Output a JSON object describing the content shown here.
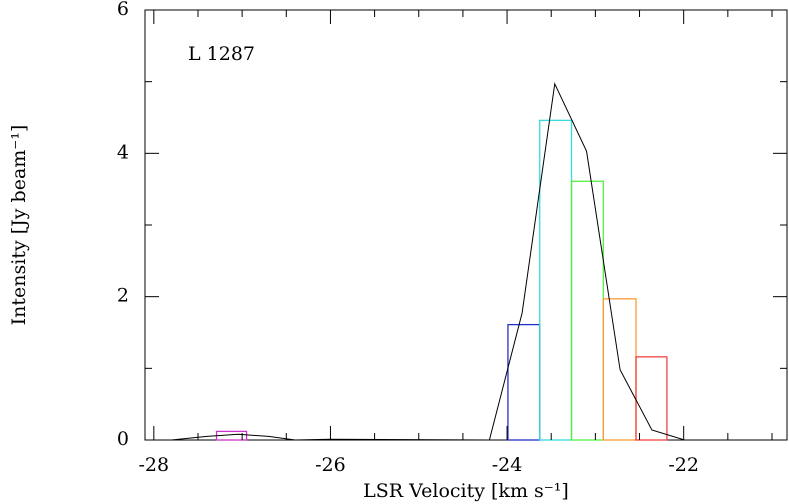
{
  "chart_data": {
    "type": "histogram-line",
    "annotation": "L 1287",
    "x_label": "LSR Velocity [km s⁻¹]",
    "y_label": "Intensity [Jy beam⁻¹]",
    "xlim": [
      -28.1,
      -20.83
    ],
    "ylim": [
      0,
      6
    ],
    "xticks": [
      -28,
      -26,
      -24,
      -22
    ],
    "yticks": [
      0,
      2,
      4,
      6
    ],
    "xminorticks": [
      -27.5,
      -27,
      -26.5,
      -25.5,
      -25,
      -24.5,
      -23.5,
      -23,
      -22.5,
      -21.5,
      -21
    ],
    "yminorticks": [
      1,
      3,
      5
    ],
    "bars": [
      {
        "color": "#cc33cc",
        "x_range": [
          -27.29,
          -26.95
        ],
        "value": 0.12
      },
      {
        "color": "#2233cc",
        "x_range": [
          -23.99,
          -23.63
        ],
        "value": 1.61
      },
      {
        "color": "#33dddd",
        "x_range": [
          -23.63,
          -23.27
        ],
        "value": 4.46
      },
      {
        "color": "#55ee44",
        "x_range": [
          -23.27,
          -22.91
        ],
        "value": 3.61
      },
      {
        "color": "#ff9933",
        "x_range": [
          -22.91,
          -22.54
        ],
        "value": 1.97
      },
      {
        "color": "#ee4444",
        "x_range": [
          -22.54,
          -22.19
        ],
        "value": 1.16
      }
    ],
    "line": {
      "color": "#000000",
      "x": [
        -28.1,
        -27.8,
        -27.4,
        -27.04,
        -26.7,
        -26.4,
        -26.0,
        -24.2,
        -23.83,
        -23.46,
        -23.1,
        -22.72,
        -22.36,
        -21.99,
        -20.83
      ],
      "values": [
        0,
        0,
        0.05,
        0.08,
        0.05,
        0,
        0.01,
        0,
        1.77,
        4.97,
        4.03,
        0.98,
        0.14,
        0,
        0
      ]
    }
  }
}
